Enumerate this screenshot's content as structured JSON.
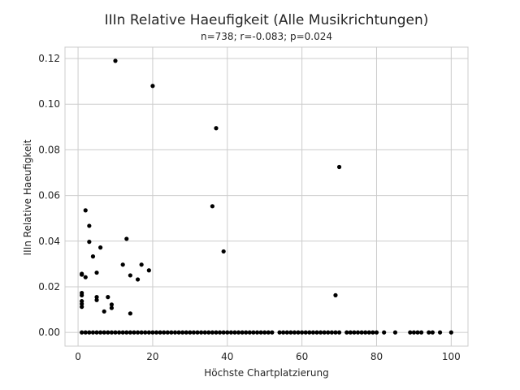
{
  "chart_data": {
    "type": "scatter",
    "title": "IIIn Relative Haeufigkeit (Alle Musikrichtungen)",
    "subtitle": "n=738; r=-0.083; p=0.024",
    "xlabel": "Höchste Chartplatzierung",
    "ylabel": "IIIn Relative Haeufigkeit",
    "xlim": [
      -3.5,
      104.5
    ],
    "ylim": [
      -0.006,
      0.125
    ],
    "xticks": [
      0,
      20,
      40,
      60,
      80,
      100
    ],
    "yticks": [
      0.0,
      0.02,
      0.04,
      0.06,
      0.08,
      0.1,
      0.12
    ],
    "ytick_labels": [
      "0.00",
      "0.02",
      "0.04",
      "0.06",
      "0.08",
      "0.10",
      "0.12"
    ],
    "grid": true,
    "point_color": "#000000",
    "zero_x": [
      1,
      2,
      3,
      4,
      5,
      6,
      7,
      8,
      9,
      10,
      11,
      12,
      13,
      14,
      15,
      16,
      17,
      18,
      19,
      20,
      21,
      22,
      23,
      24,
      25,
      26,
      27,
      28,
      29,
      30,
      31,
      32,
      33,
      34,
      35,
      36,
      37,
      38,
      39,
      40,
      41,
      42,
      43,
      44,
      45,
      46,
      47,
      48,
      49,
      50,
      51,
      52,
      54,
      55,
      56,
      57,
      58,
      59,
      60,
      61,
      62,
      63,
      64,
      65,
      66,
      67,
      68,
      69,
      70,
      72,
      73,
      74,
      75,
      76,
      77,
      78,
      79,
      80,
      82,
      85,
      89,
      90,
      91,
      92,
      94,
      95,
      97,
      100
    ],
    "points": [
      {
        "x": 10,
        "y": 0.119
      },
      {
        "x": 20,
        "y": 0.108
      },
      {
        "x": 37,
        "y": 0.0895
      },
      {
        "x": 70,
        "y": 0.0725
      },
      {
        "x": 36,
        "y": 0.0553
      },
      {
        "x": 2,
        "y": 0.0535
      },
      {
        "x": 3,
        "y": 0.0467
      },
      {
        "x": 13,
        "y": 0.041
      },
      {
        "x": 3,
        "y": 0.0397
      },
      {
        "x": 6,
        "y": 0.0372
      },
      {
        "x": 39,
        "y": 0.0355
      },
      {
        "x": 4,
        "y": 0.0333
      },
      {
        "x": 12,
        "y": 0.0297
      },
      {
        "x": 17,
        "y": 0.0297
      },
      {
        "x": 19,
        "y": 0.0272
      },
      {
        "x": 5,
        "y": 0.0262
      },
      {
        "x": 1,
        "y": 0.0257
      },
      {
        "x": 1,
        "y": 0.0253
      },
      {
        "x": 14,
        "y": 0.025
      },
      {
        "x": 2,
        "y": 0.0242
      },
      {
        "x": 16,
        "y": 0.0232
      },
      {
        "x": 1,
        "y": 0.0173
      },
      {
        "x": 1,
        "y": 0.0163
      },
      {
        "x": 69,
        "y": 0.0163
      },
      {
        "x": 5,
        "y": 0.0155
      },
      {
        "x": 8,
        "y": 0.0155
      },
      {
        "x": 5,
        "y": 0.0142
      },
      {
        "x": 1,
        "y": 0.0137
      },
      {
        "x": 1,
        "y": 0.0125
      },
      {
        "x": 9,
        "y": 0.0122
      },
      {
        "x": 1,
        "y": 0.0112
      },
      {
        "x": 9,
        "y": 0.0107
      },
      {
        "x": 7,
        "y": 0.0092
      },
      {
        "x": 14,
        "y": 0.0083
      }
    ]
  }
}
